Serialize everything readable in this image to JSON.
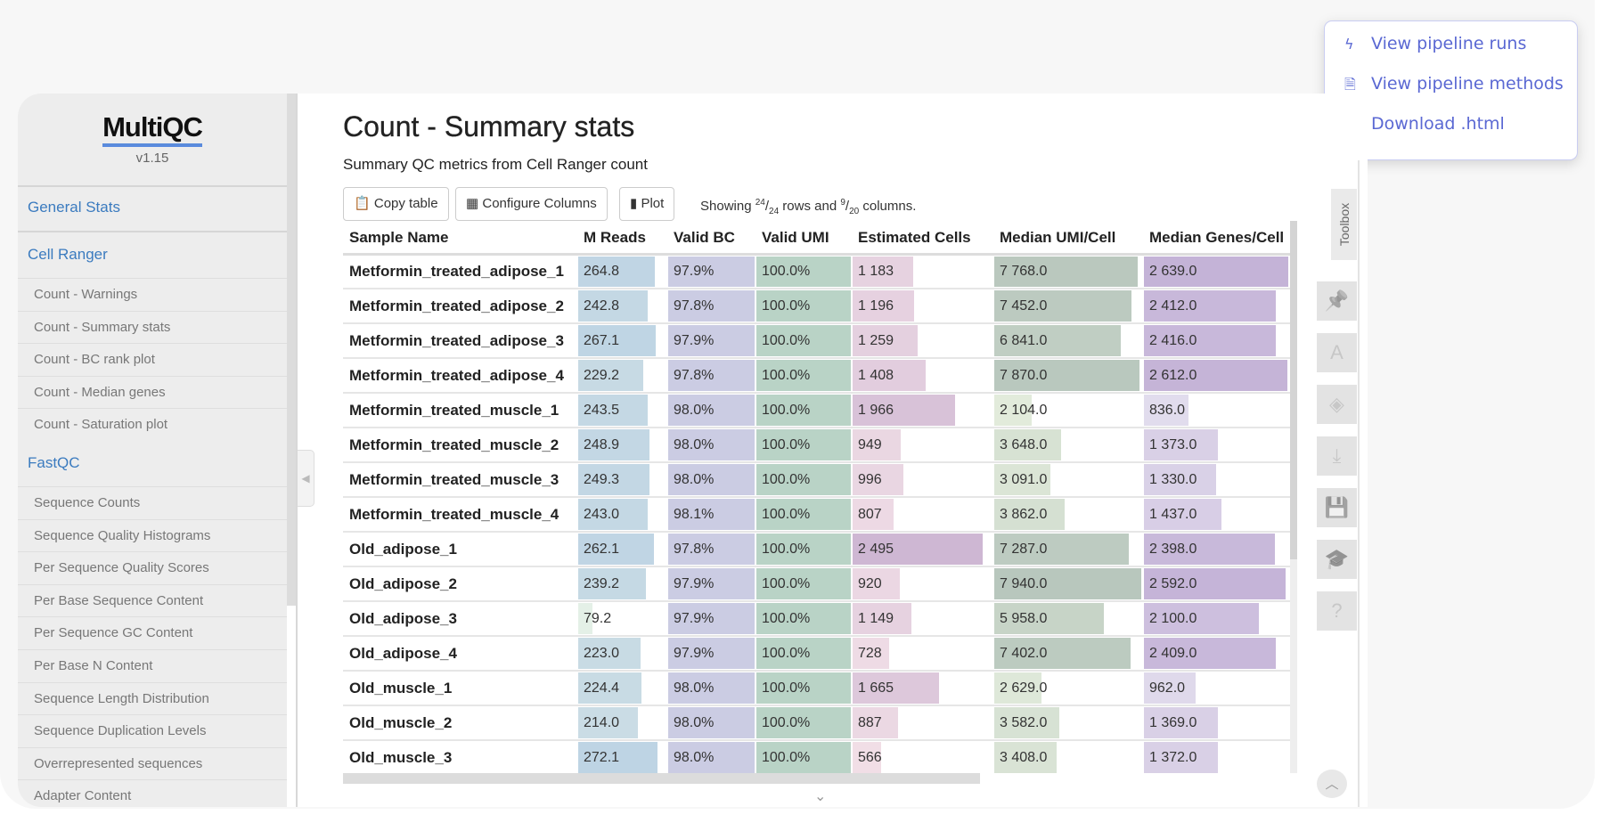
{
  "menu": {
    "items": [
      {
        "label": "View pipeline runs",
        "icon": "lightning-icon"
      },
      {
        "label": "View pipeline methods",
        "icon": "document-icon"
      },
      {
        "label": "Download .html",
        "icon": "download-icon"
      }
    ]
  },
  "sidebar": {
    "logo": "MultiQC",
    "version": "v1.15",
    "general": "General Stats",
    "cellranger": {
      "title": "Cell Ranger",
      "items": [
        "Count - Warnings",
        "Count - Summary stats",
        "Count - BC rank plot",
        "Count - Median genes",
        "Count - Saturation plot"
      ]
    },
    "fastqc": {
      "title": "FastQC",
      "items": [
        "Sequence Counts",
        "Sequence Quality Histograms",
        "Per Sequence Quality Scores",
        "Per Base Sequence Content",
        "Per Sequence GC Content",
        "Per Base N Content",
        "Sequence Length Distribution",
        "Sequence Duplication Levels",
        "Overrepresented sequences",
        "Adapter Content"
      ]
    }
  },
  "main": {
    "title": "Count - Summary stats",
    "subtitle": "Summary QC metrics from Cell Ranger count",
    "buttons": {
      "copy": "Copy table",
      "configure": "Configure Columns",
      "plot": "Plot"
    },
    "showing": {
      "prefix": "Showing ",
      "rows_num": "24",
      "rows_den": "24",
      "mid": " rows and ",
      "cols_num": "9",
      "cols_den": "20",
      "suffix": " columns."
    }
  },
  "table": {
    "columns": [
      {
        "label": "Sample Name"
      },
      {
        "label": "M Reads",
        "colors": [
          "#eef7e8",
          "#b9d0e3"
        ],
        "range": [
          30,
          300
        ]
      },
      {
        "label": "Valid BC",
        "colors": [
          "#cfd0e6",
          "#cbcce3"
        ],
        "range": [
          0,
          98.1
        ]
      },
      {
        "label": "Valid UMI",
        "colors": [
          "#b9d3c6",
          "#b9d3c6"
        ],
        "range": [
          0,
          100
        ]
      },
      {
        "label": "Estimated Cells",
        "colors": [
          "#fbeaec",
          "#cbb3d1"
        ],
        "range": [
          0,
          2680
        ]
      },
      {
        "label": "Median UMI/Cell",
        "colors": [
          "#f1f8e6",
          "#b8c7bd"
        ],
        "range": [
          0,
          8000
        ]
      },
      {
        "label": "Median Genes/Cell",
        "colors": [
          "#efeff7",
          "#c4b3d7"
        ],
        "range": [
          0,
          2650
        ]
      }
    ],
    "rows": [
      [
        "Metformin_treated_adipose_1",
        "264.8",
        "97.9%",
        "100.0%",
        "1 183",
        "7 768.0",
        "2 639.0"
      ],
      [
        "Metformin_treated_adipose_2",
        "242.8",
        "97.8%",
        "100.0%",
        "1 196",
        "7 452.0",
        "2 412.0"
      ],
      [
        "Metformin_treated_adipose_3",
        "267.1",
        "97.9%",
        "100.0%",
        "1 259",
        "6 841.0",
        "2 416.0"
      ],
      [
        "Metformin_treated_adipose_4",
        "229.2",
        "97.8%",
        "100.0%",
        "1 408",
        "7 870.0",
        "2 612.0"
      ],
      [
        "Metformin_treated_muscle_1",
        "243.5",
        "98.0%",
        "100.0%",
        "1 966",
        "2 104.0",
        "836.0"
      ],
      [
        "Metformin_treated_muscle_2",
        "248.9",
        "98.0%",
        "100.0%",
        "949",
        "3 648.0",
        "1 373.0"
      ],
      [
        "Metformin_treated_muscle_3",
        "249.3",
        "98.0%",
        "100.0%",
        "996",
        "3 091.0",
        "1 330.0"
      ],
      [
        "Metformin_treated_muscle_4",
        "243.0",
        "98.1%",
        "100.0%",
        "807",
        "3 862.0",
        "1 437.0"
      ],
      [
        "Old_adipose_1",
        "262.1",
        "97.8%",
        "100.0%",
        "2 495",
        "7 287.0",
        "2 398.0"
      ],
      [
        "Old_adipose_2",
        "239.2",
        "97.9%",
        "100.0%",
        "920",
        "7 940.0",
        "2 592.0"
      ],
      [
        "Old_adipose_3",
        "79.2",
        "97.9%",
        "100.0%",
        "1 149",
        "5 958.0",
        "2 100.0"
      ],
      [
        "Old_adipose_4",
        "223.0",
        "97.9%",
        "100.0%",
        "728",
        "7 402.0",
        "2 409.0"
      ],
      [
        "Old_muscle_1",
        "224.4",
        "98.0%",
        "100.0%",
        "1 665",
        "2 629.0",
        "962.0"
      ],
      [
        "Old_muscle_2",
        "214.0",
        "98.0%",
        "100.0%",
        "887",
        "3 582.0",
        "1 369.0"
      ],
      [
        "Old_muscle_3",
        "272.1",
        "98.0%",
        "100.0%",
        "566",
        "3 408.0",
        "1 372.0"
      ]
    ]
  },
  "toolbox": {
    "label": "Toolbox",
    "buttons": [
      "pin-icon",
      "font-icon",
      "eye-slash-icon",
      "download-icon",
      "save-icon",
      "graduation-cap-icon",
      "help-icon"
    ]
  }
}
